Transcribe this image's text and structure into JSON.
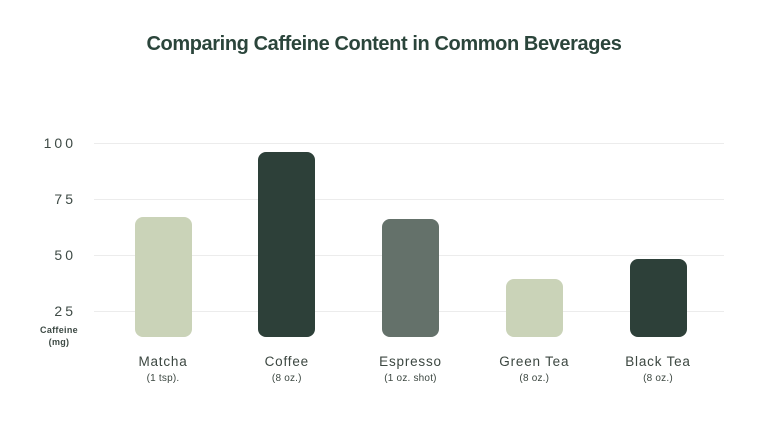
{
  "title": "Comparing Caffeine Content in Common Beverages",
  "colors": {
    "background": "#ffffff",
    "title_text": "#2b453b",
    "axis_text": "#3e4a45",
    "label_text": "#3c4741",
    "gridline": "#ececec",
    "bar_light_sage": "#cad3b8",
    "bar_dark_green": "#2d4039",
    "bar_gray_green": "#64716a"
  },
  "chart_data": {
    "type": "bar",
    "title": "Comparing Caffeine Content in Common Beverages",
    "categories": [
      "Matcha",
      "Coffee",
      "Espresso",
      "Green Tea",
      "Black Tea"
    ],
    "category_sublabels": [
      "(1 tsp).",
      "(8 oz.)",
      "(1 oz. shot)",
      "(8 oz.)",
      "(8 oz.)"
    ],
    "values": [
      67,
      96,
      66,
      39,
      48
    ],
    "unit": "mg",
    "bar_colors": [
      "#cad3b8",
      "#2d4039",
      "#64716a",
      "#cad3b8",
      "#2d4039"
    ],
    "xlabel": "",
    "ylabel": "Caffeine (mg)",
    "ylabel_lines": [
      "Caffeine",
      "(mg)"
    ],
    "yticks": [
      100,
      75,
      50,
      25
    ],
    "ylim": [
      0,
      100
    ],
    "grid": true,
    "legend_position": "none"
  }
}
